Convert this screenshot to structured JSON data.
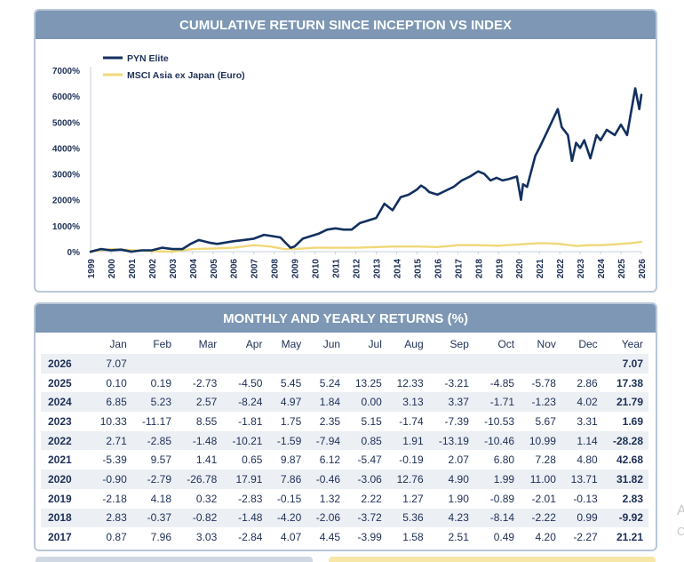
{
  "chart_section": {
    "title": "CUMULATIVE RETURN SINCE INCEPTION VS INDEX"
  },
  "chart_data": {
    "type": "line",
    "ylim": [
      0,
      7000
    ],
    "yticks": [
      "0%",
      "1000%",
      "2000%",
      "3000%",
      "4000%",
      "5000%",
      "6000%",
      "7000%"
    ],
    "xticks": [
      "1999",
      "2000",
      "2001",
      "2002",
      "2003",
      "2004",
      "2005",
      "2006",
      "2007",
      "2008",
      "2009",
      "2010",
      "2011",
      "2012",
      "2013",
      "2014",
      "2015",
      "2016",
      "2017",
      "2018",
      "2019",
      "2020",
      "2021",
      "2022",
      "2023",
      "2024",
      "2025",
      "2026"
    ],
    "legend_position": "top-left",
    "grid": false,
    "series": [
      {
        "name": "PYN Elite",
        "color": "#12305f",
        "x": [
          1999.0,
          1999.5,
          2000.0,
          2000.5,
          2001.0,
          2001.5,
          2002.0,
          2002.5,
          2003.0,
          2003.5,
          2003.9,
          2004.3,
          2004.8,
          2005.2,
          2005.6,
          2006.0,
          2006.5,
          2007.0,
          2007.5,
          2007.9,
          2008.3,
          2008.8,
          2009.0,
          2009.4,
          2009.8,
          2010.2,
          2010.6,
          2011.0,
          2011.4,
          2011.8,
          2012.2,
          2012.6,
          2013.0,
          2013.4,
          2013.8,
          2014.2,
          2014.6,
          2015.0,
          2015.2,
          2015.4,
          2015.6,
          2016.0,
          2016.4,
          2016.8,
          2017.2,
          2017.6,
          2018.0,
          2018.3,
          2018.6,
          2018.9,
          2019.2,
          2019.5,
          2019.9,
          2020.1,
          2020.2,
          2020.4,
          2020.8,
          2021.0,
          2021.3,
          2021.6,
          2021.9,
          2022.1,
          2022.4,
          2022.6,
          2022.8,
          2023.0,
          2023.2,
          2023.5,
          2023.8,
          2024.0,
          2024.3,
          2024.7,
          2025.0,
          2025.3,
          2025.5,
          2025.7,
          2025.9,
          2026.0
        ],
        "values": [
          0,
          100,
          50,
          80,
          0,
          50,
          50,
          150,
          100,
          100,
          300,
          450,
          350,
          300,
          350,
          400,
          450,
          500,
          650,
          600,
          550,
          150,
          200,
          500,
          600,
          700,
          850,
          900,
          850,
          850,
          1100,
          1200,
          1300,
          1850,
          1600,
          2100,
          2200,
          2400,
          2550,
          2450,
          2300,
          2200,
          2350,
          2500,
          2750,
          2900,
          3100,
          3000,
          2750,
          2850,
          2750,
          2800,
          2900,
          2000,
          2600,
          2500,
          3700,
          4000,
          4500,
          5000,
          5500,
          4800,
          4500,
          3500,
          4200,
          4000,
          4300,
          3600,
          4500,
          4300,
          4700,
          4500,
          4900,
          4500,
          5400,
          6300,
          5500,
          6050
        ]
      },
      {
        "name": "MSCI Asia ex Japan (Euro)",
        "color": "#f0d878",
        "x": [
          1999.0,
          2000.0,
          2001.0,
          2002.0,
          2003.0,
          2004.0,
          2005.0,
          2006.0,
          2007.0,
          2007.8,
          2008.5,
          2009.0,
          2010.0,
          2011.0,
          2012.0,
          2013.0,
          2014.0,
          2015.0,
          2016.0,
          2017.0,
          2018.0,
          2019.0,
          2020.0,
          2021.0,
          2021.5,
          2022.0,
          2022.8,
          2023.5,
          2024.0,
          2025.0,
          2025.5,
          2026.0
        ],
        "values": [
          0,
          100,
          60,
          20,
          0,
          100,
          120,
          150,
          250,
          200,
          100,
          100,
          150,
          150,
          150,
          180,
          200,
          200,
          180,
          250,
          250,
          230,
          280,
          330,
          320,
          300,
          220,
          250,
          250,
          300,
          330,
          380
        ]
      }
    ]
  },
  "table_section": {
    "title": "MONTHLY AND YEARLY RETURNS (%)",
    "columns": [
      "",
      "Jan",
      "Feb",
      "Mar",
      "Apr",
      "May",
      "Jun",
      "Jul",
      "Aug",
      "Sep",
      "Oct",
      "Nov",
      "Dec",
      "Year"
    ],
    "rows": [
      {
        "year": "2026",
        "months": [
          "7.07",
          "",
          "",
          "",
          "",
          "",
          "",
          "",
          "",
          "",
          "",
          ""
        ],
        "total": "7.07"
      },
      {
        "year": "2025",
        "months": [
          "0.10",
          "0.19",
          "-2.73",
          "-4.50",
          "5.45",
          "5.24",
          "13.25",
          "12.33",
          "-3.21",
          "-4.85",
          "-5.78",
          "2.86"
        ],
        "total": "17.38"
      },
      {
        "year": "2024",
        "months": [
          "6.85",
          "5.23",
          "2.57",
          "-8.24",
          "4.97",
          "1.84",
          "0.00",
          "3.13",
          "3.37",
          "-1.71",
          "-1.23",
          "4.02"
        ],
        "total": "21.79"
      },
      {
        "year": "2023",
        "months": [
          "10.33",
          "-11.17",
          "8.55",
          "-1.81",
          "1.75",
          "2.35",
          "5.15",
          "-1.74",
          "-7.39",
          "-10.53",
          "5.67",
          "3.31"
        ],
        "total": "1.69"
      },
      {
        "year": "2022",
        "months": [
          "2.71",
          "-2.85",
          "-1.48",
          "-10.21",
          "-1.59",
          "-7.94",
          "0.85",
          "1.91",
          "-13.19",
          "-10.46",
          "10.99",
          "1.14"
        ],
        "total": "-28.28"
      },
      {
        "year": "2021",
        "months": [
          "-5.39",
          "9.57",
          "1.41",
          "0.65",
          "9.87",
          "6.12",
          "-5.47",
          "-0.19",
          "2.07",
          "6.80",
          "7.28",
          "4.80"
        ],
        "total": "42.68"
      },
      {
        "year": "2020",
        "months": [
          "-0.90",
          "-2.79",
          "-26.78",
          "17.91",
          "7.86",
          "-0.46",
          "-3.06",
          "12.76",
          "4.90",
          "1.99",
          "11.00",
          "13.71"
        ],
        "total": "31.82"
      },
      {
        "year": "2019",
        "months": [
          "-2.18",
          "4.18",
          "0.32",
          "-2.83",
          "-0.15",
          "1.32",
          "2.22",
          "1.27",
          "1.90",
          "-0.89",
          "-2.01",
          "-0.13"
        ],
        "total": "2.83"
      },
      {
        "year": "2018",
        "months": [
          "2.83",
          "-0.37",
          "-0.82",
          "-1.48",
          "-4.20",
          "-2.06",
          "-3.72",
          "5.36",
          "4.23",
          "-8.14",
          "-2.22",
          "0.99"
        ],
        "total": "-9.92"
      },
      {
        "year": "2017",
        "months": [
          "0.87",
          "7.96",
          "3.03",
          "-2.84",
          "4.07",
          "4.45",
          "-3.99",
          "1.58",
          "2.51",
          "0.49",
          "4.20",
          "-2.27"
        ],
        "total": "21.21"
      }
    ]
  },
  "edge_glyphs": [
    "A",
    "C"
  ]
}
